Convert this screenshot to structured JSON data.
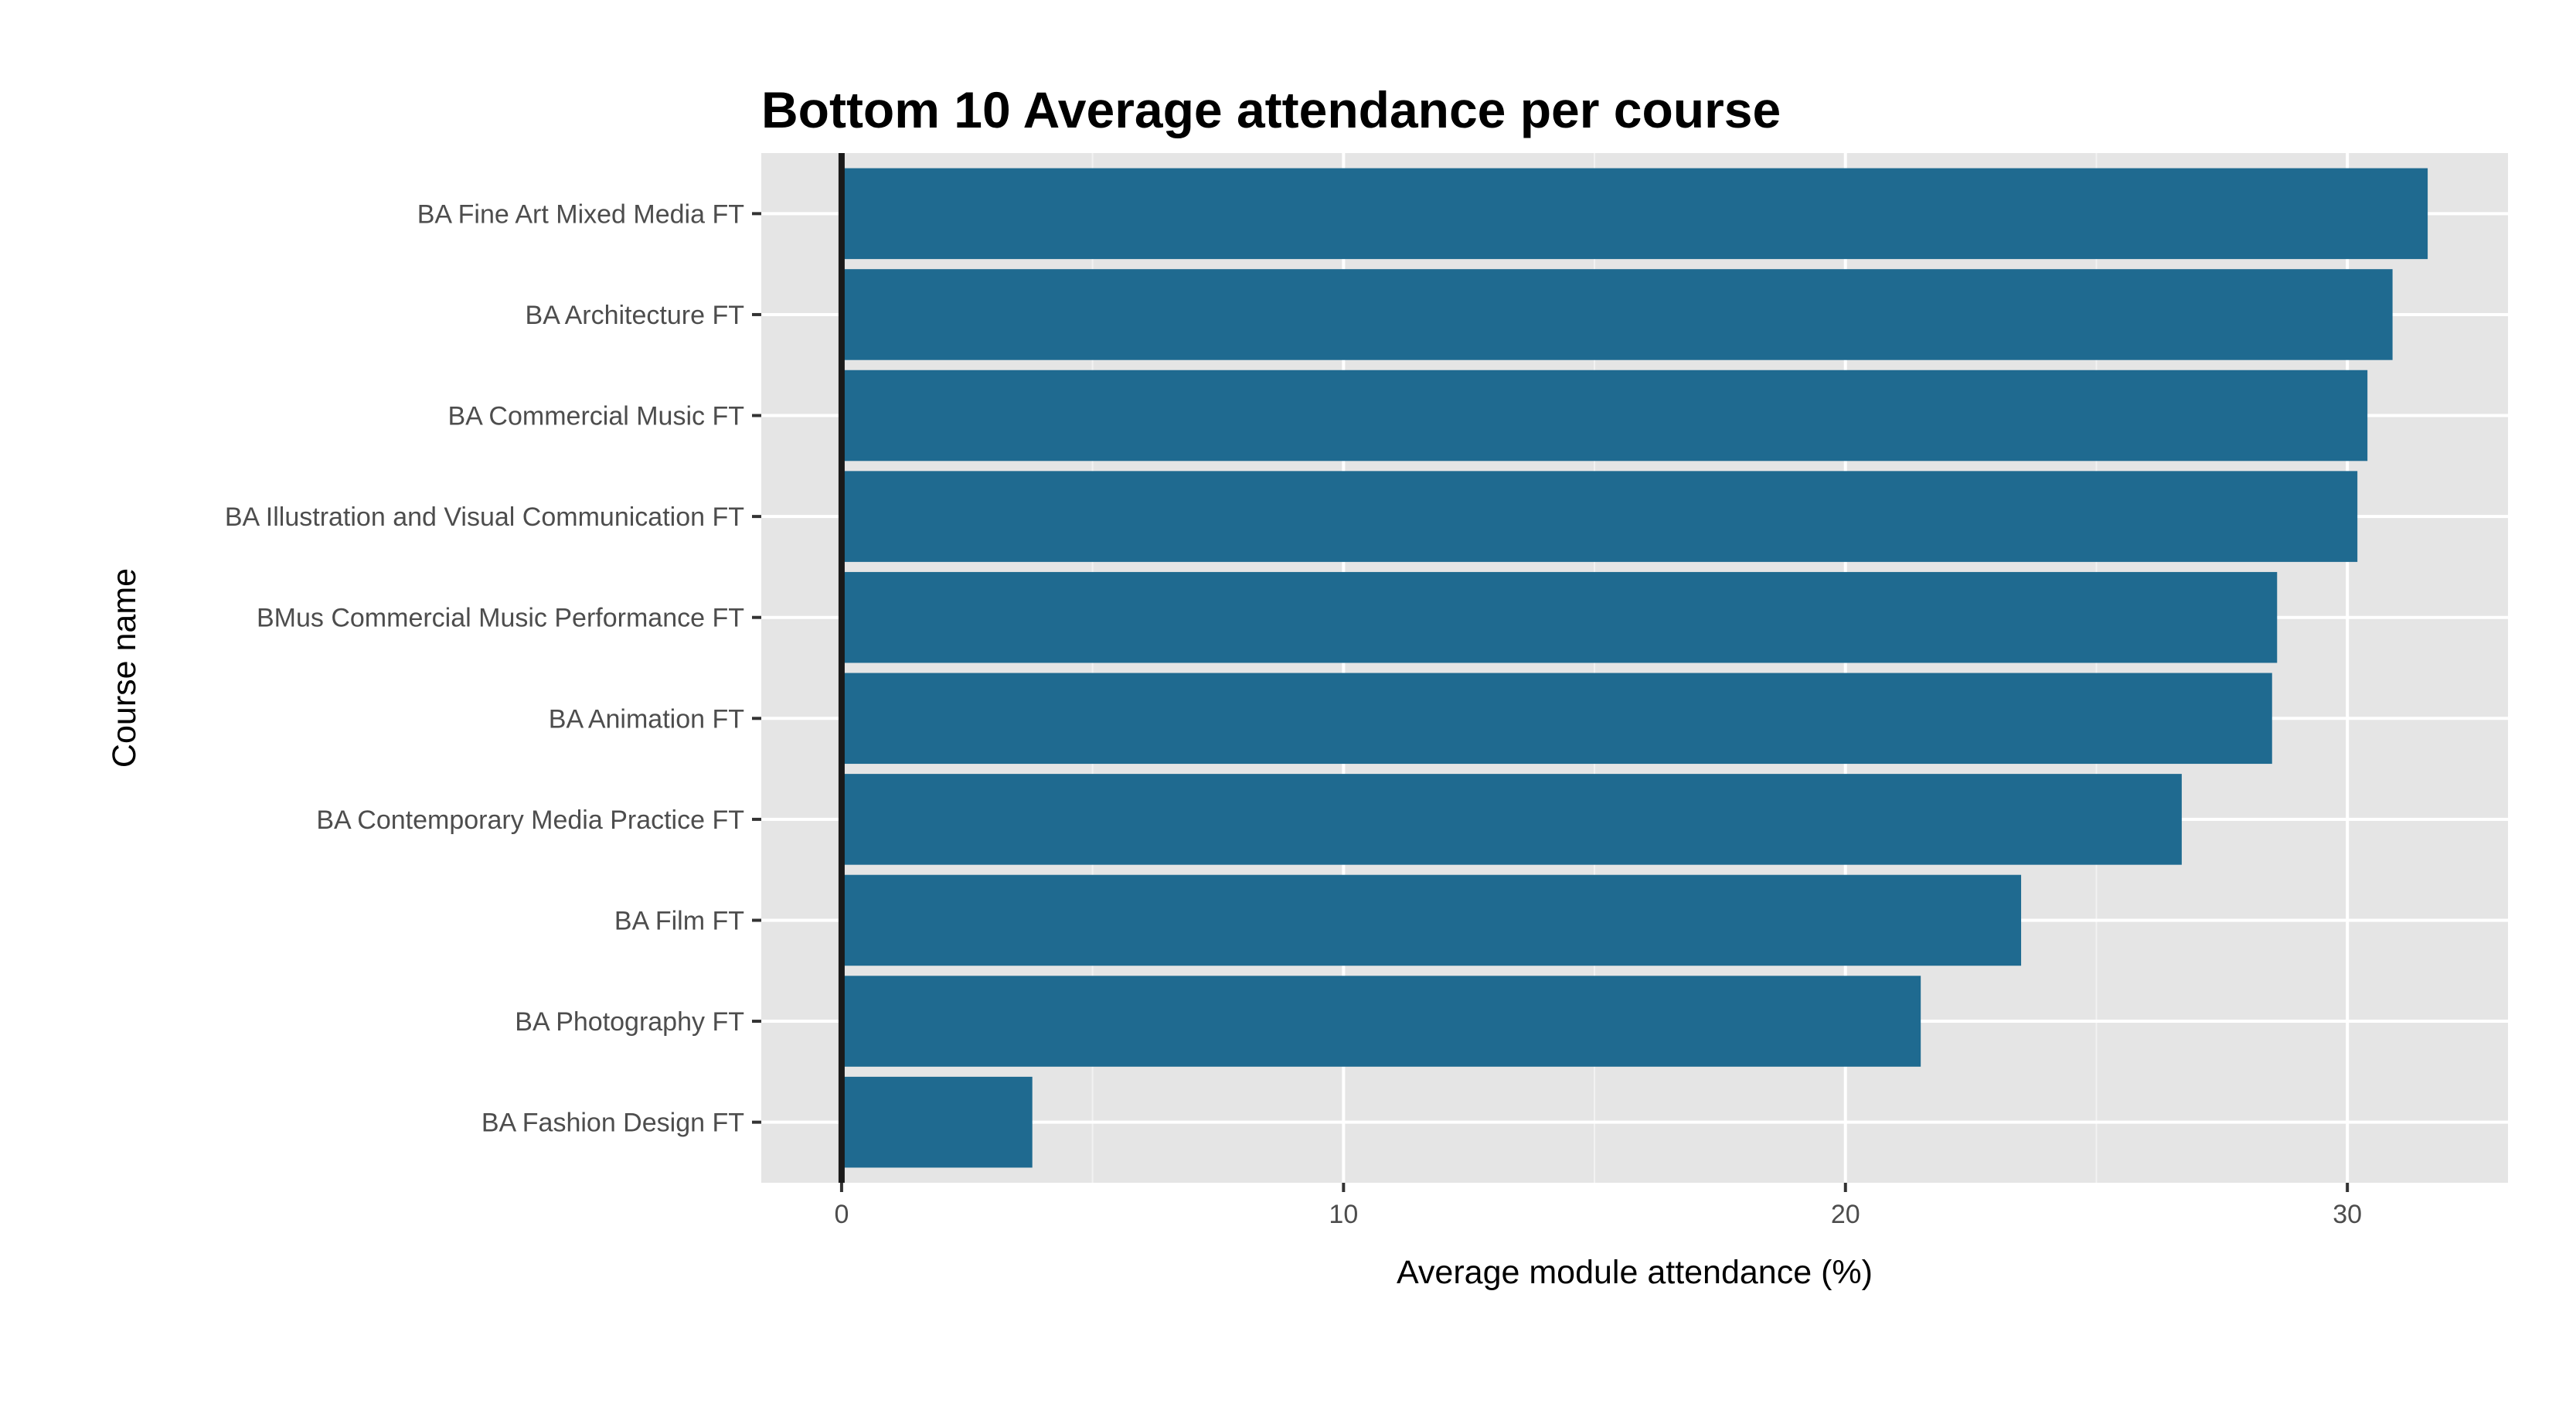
{
  "chart_data": {
    "type": "bar",
    "orientation": "horizontal",
    "title": "Bottom 10 Average attendance per course",
    "xlabel": "Average module attendance (%)",
    "ylabel": "Course name",
    "categories": [
      "BA Fine Art Mixed Media FT",
      "BA Architecture FT",
      "BA Commercial Music FT",
      "BA Illustration and Visual Communication FT",
      "BMus Commercial Music Performance FT",
      "BA Animation FT",
      "BA Contemporary Media Practice FT",
      "BA Film FT",
      "BA Photography FT",
      "BA Fashion Design FT"
    ],
    "values": [
      31.6,
      30.9,
      30.4,
      30.2,
      28.6,
      28.5,
      26.7,
      23.5,
      21.5,
      3.8
    ],
    "xlim": [
      -1.6,
      33.2
    ],
    "xticks": [
      0,
      10,
      20,
      30
    ],
    "xtick_labels": [
      "0",
      "10",
      "20",
      "30"
    ],
    "bar_color": "#1f6a90",
    "panel_background": "#e5e5e5",
    "grid": true,
    "reference_line_at": 0
  }
}
